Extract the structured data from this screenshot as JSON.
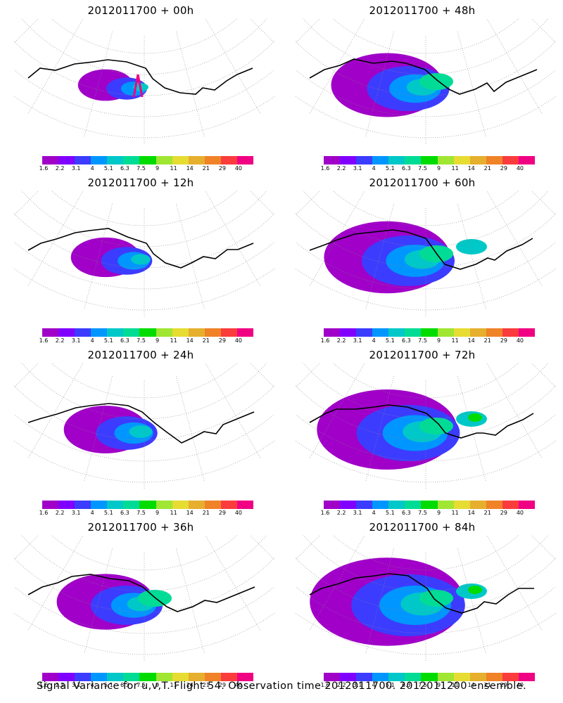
{
  "panels": [
    {
      "title": "2012011700 + 00h",
      "level": 0
    },
    {
      "title": "2012011700 + 48h",
      "level": 4
    },
    {
      "title": "2012011700 + 12h",
      "level": 1
    },
    {
      "title": "2012011700 + 60h",
      "level": 5
    },
    {
      "title": "2012011700 + 24h",
      "level": 2
    },
    {
      "title": "2012011700 + 72h",
      "level": 6
    },
    {
      "title": "2012011700 + 36h",
      "level": 3
    },
    {
      "title": "2012011700 + 84h",
      "level": 7
    }
  ],
  "colorbar": {
    "labels": [
      "1.6",
      "2.2",
      "3.1",
      "4",
      "5.1",
      "6.3",
      "7.5",
      "9",
      "11",
      "14",
      "21",
      "29",
      "40"
    ],
    "colors": [
      "#a000c8",
      "#8000ff",
      "#3c3cff",
      "#0096ff",
      "#00c8c8",
      "#00dc96",
      "#00dc00",
      "#a0e632",
      "#e6dc32",
      "#e6af2d",
      "#f08228",
      "#fa3c3c",
      "#f00082"
    ]
  },
  "footer": "Signal Variance for u,v,T. Flight 54. Observation time 2012011700. 2012011200 ensemble."
}
